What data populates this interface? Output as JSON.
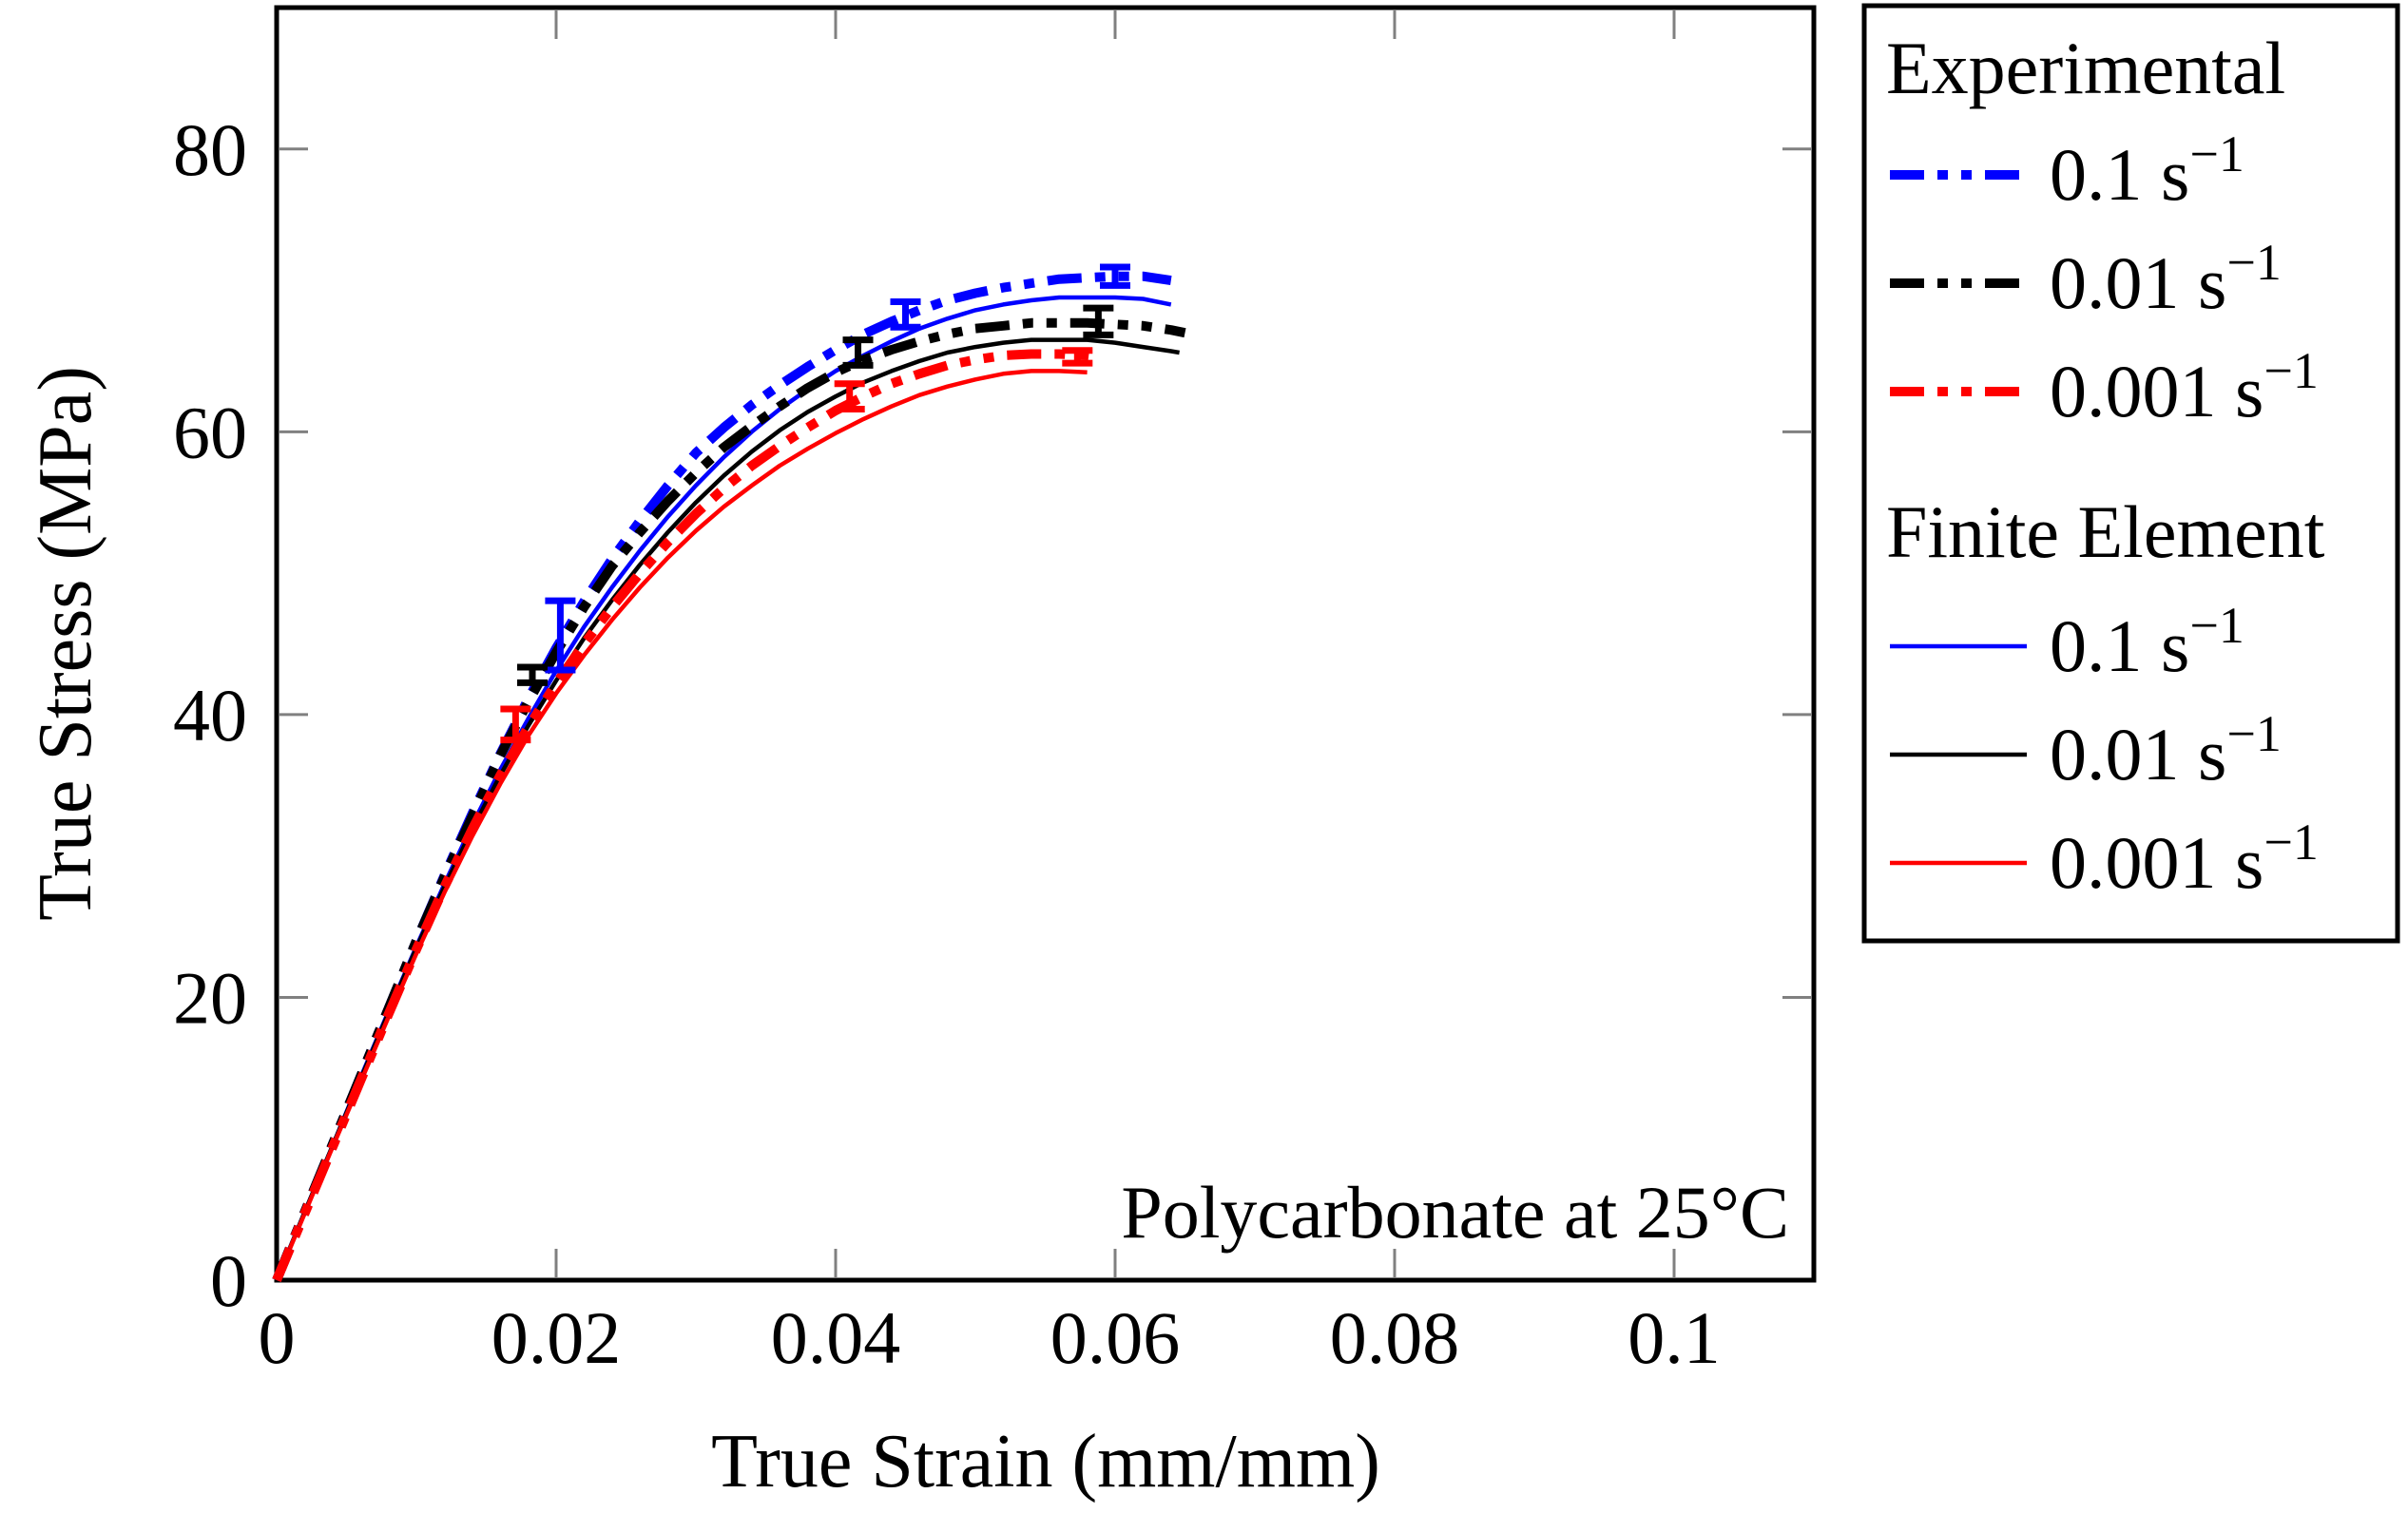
{
  "axes": {
    "xlabel": "True Strain (mm/mm)",
    "ylabel": "True Stress (MPa)",
    "annotation": "Polycarbonate at 25°C"
  },
  "legend": {
    "sections": [
      {
        "title": "Experimental",
        "items": [
          {
            "label": "0.1 s",
            "sup": "−1",
            "color": "#0000ff",
            "line_style": "dash-dot-dot"
          },
          {
            "label": "0.01 s",
            "sup": "−1",
            "color": "#000000",
            "line_style": "dash-dot-dot"
          },
          {
            "label": "0.001 s",
            "sup": "−1",
            "color": "#ff0000",
            "line_style": "dash-dot-dot"
          }
        ]
      },
      {
        "title": "Finite Element",
        "items": [
          {
            "label": "0.1 s",
            "sup": "−1",
            "color": "#0000ff",
            "line_style": "solid"
          },
          {
            "label": "0.01 s",
            "sup": "−1",
            "color": "#000000",
            "line_style": "solid"
          },
          {
            "label": "0.001 s",
            "sup": "−1",
            "color": "#ff0000",
            "line_style": "solid"
          }
        ]
      }
    ]
  },
  "chart_data": {
    "type": "line",
    "title": "Polycarbonate at 25°C",
    "xlabel": "True Strain (mm/mm)",
    "ylabel": "True Stress (MPa)",
    "xlim": [
      0,
      0.11
    ],
    "ylim": [
      0,
      90
    ],
    "grid": false,
    "legend_position": "outside-right",
    "xticks": [
      0,
      0.02,
      0.04,
      0.06,
      0.08,
      0.1
    ],
    "xtick_labels": [
      "0",
      "0.02",
      "0.04",
      "0.06",
      "0.08",
      "0.1"
    ],
    "yticks": [
      0,
      20,
      40,
      60,
      80
    ],
    "ytick_labels": [
      "0",
      "20",
      "40",
      "60",
      "80"
    ],
    "tick_color": "#808080",
    "series": [
      {
        "id": "fe-0.1",
        "name": "Finite Element 0.1 s^-1",
        "color": "#0000ff",
        "dashed": false,
        "x": [
          0,
          0.002,
          0.004,
          0.006,
          0.008,
          0.01,
          0.012,
          0.014,
          0.016,
          0.018,
          0.02,
          0.022,
          0.024,
          0.026,
          0.028,
          0.03,
          0.032,
          0.034,
          0.036,
          0.038,
          0.04,
          0.042,
          0.044,
          0.046,
          0.048,
          0.05,
          0.052,
          0.054,
          0.056,
          0.058,
          0.06,
          0.062,
          0.064
        ],
        "y": [
          0,
          4.8,
          9.5,
          14.3,
          19.0,
          23.6,
          28.0,
          32.2,
          36.1,
          39.7,
          43.1,
          46.2,
          49.0,
          51.6,
          54.0,
          56.2,
          58.2,
          60.0,
          61.6,
          63.0,
          64.3,
          65.4,
          66.4,
          67.3,
          68.0,
          68.6,
          69.0,
          69.3,
          69.5,
          69.5,
          69.5,
          69.4,
          69.0
        ],
        "error_bars": []
      },
      {
        "id": "fe-0.01",
        "name": "Finite Element 0.01 s^-1",
        "color": "#000000",
        "dashed": false,
        "x": [
          0,
          0.002,
          0.004,
          0.006,
          0.008,
          0.01,
          0.012,
          0.014,
          0.016,
          0.018,
          0.02,
          0.022,
          0.024,
          0.026,
          0.028,
          0.03,
          0.032,
          0.034,
          0.036,
          0.038,
          0.04,
          0.042,
          0.044,
          0.046,
          0.048,
          0.05,
          0.052,
          0.054,
          0.056,
          0.058,
          0.06,
          0.062,
          0.064,
          0.0646
        ],
        "y": [
          0,
          4.8,
          9.5,
          14.2,
          18.9,
          23.5,
          27.8,
          31.9,
          35.7,
          39.2,
          42.4,
          45.4,
          48.1,
          50.6,
          52.9,
          55.0,
          56.9,
          58.6,
          60.1,
          61.4,
          62.5,
          63.5,
          64.3,
          65.0,
          65.6,
          66.0,
          66.3,
          66.5,
          66.5,
          66.5,
          66.3,
          66.0,
          65.7,
          65.6
        ],
        "error_bars": []
      },
      {
        "id": "fe-0.001",
        "name": "Finite Element 0.001 s^-1",
        "color": "#ff0000",
        "dashed": false,
        "x": [
          0,
          0.002,
          0.004,
          0.006,
          0.008,
          0.01,
          0.012,
          0.014,
          0.016,
          0.018,
          0.02,
          0.022,
          0.024,
          0.026,
          0.028,
          0.03,
          0.032,
          0.034,
          0.036,
          0.038,
          0.04,
          0.042,
          0.044,
          0.046,
          0.048,
          0.05,
          0.052,
          0.054,
          0.056,
          0.058
        ],
        "y": [
          0,
          4.7,
          9.4,
          14.0,
          18.6,
          23.1,
          27.4,
          31.4,
          35.1,
          38.5,
          41.5,
          44.2,
          46.7,
          49.0,
          51.1,
          53.0,
          54.7,
          56.2,
          57.6,
          58.8,
          59.9,
          60.9,
          61.8,
          62.6,
          63.2,
          63.7,
          64.1,
          64.3,
          64.3,
          64.2
        ],
        "error_bars": []
      },
      {
        "id": "exp-0.1",
        "name": "Experimental 0.1 s^-1",
        "color": "#0000ff",
        "dashed": true,
        "x": [
          0,
          0.002,
          0.004,
          0.006,
          0.008,
          0.01,
          0.012,
          0.014,
          0.016,
          0.018,
          0.02,
          0.022,
          0.024,
          0.026,
          0.028,
          0.03,
          0.032,
          0.034,
          0.036,
          0.038,
          0.04,
          0.042,
          0.044,
          0.046,
          0.048,
          0.05,
          0.052,
          0.054,
          0.056,
          0.058,
          0.06,
          0.062,
          0.064
        ],
        "y": [
          0,
          4.8,
          9.6,
          14.4,
          19.2,
          24.0,
          28.6,
          33.0,
          37.2,
          41.1,
          44.7,
          48.0,
          51.0,
          53.7,
          56.2,
          58.5,
          60.3,
          61.9,
          63.3,
          64.6,
          65.8,
          66.9,
          67.8,
          68.6,
          69.3,
          69.8,
          70.2,
          70.5,
          70.8,
          70.9,
          71.0,
          71.0,
          70.7
        ],
        "error_bars": [
          {
            "x": 0.0203,
            "y": 45.6,
            "err": 2.45
          },
          {
            "x": 0.045,
            "y": 68.3,
            "err": 0.9
          },
          {
            "x": 0.06,
            "y": 71.0,
            "err": 0.65
          }
        ]
      },
      {
        "id": "exp-0.01",
        "name": "Experimental 0.01 s^-1",
        "color": "#000000",
        "dashed": true,
        "x": [
          0,
          0.002,
          0.004,
          0.006,
          0.008,
          0.01,
          0.012,
          0.014,
          0.016,
          0.018,
          0.02,
          0.022,
          0.024,
          0.026,
          0.028,
          0.03,
          0.032,
          0.034,
          0.036,
          0.038,
          0.04,
          0.042,
          0.044,
          0.046,
          0.048,
          0.05,
          0.052,
          0.054,
          0.056,
          0.058,
          0.06,
          0.062,
          0.064,
          0.065
        ],
        "y": [
          0,
          4.8,
          9.6,
          14.4,
          19.2,
          24.0,
          28.5,
          32.8,
          37.1,
          40.9,
          44.4,
          47.6,
          50.5,
          52.9,
          55.1,
          57.1,
          58.9,
          60.4,
          61.8,
          63.1,
          64.2,
          65.1,
          65.8,
          66.4,
          66.9,
          67.3,
          67.5,
          67.7,
          67.7,
          67.7,
          67.6,
          67.5,
          67.2,
          67.0
        ],
        "error_bars": [
          {
            "x": 0.0183,
            "y": 42.8,
            "err": 0.55
          },
          {
            "x": 0.0416,
            "y": 65.6,
            "err": 0.9
          },
          {
            "x": 0.0588,
            "y": 67.8,
            "err": 0.95
          }
        ]
      },
      {
        "id": "exp-0.001",
        "name": "Experimental 0.001 s^-1",
        "color": "#ff0000",
        "dashed": true,
        "x": [
          0,
          0.002,
          0.004,
          0.006,
          0.008,
          0.01,
          0.012,
          0.014,
          0.016,
          0.018,
          0.02,
          0.022,
          0.024,
          0.026,
          0.028,
          0.03,
          0.032,
          0.034,
          0.036,
          0.038,
          0.04,
          0.042,
          0.044,
          0.046,
          0.048,
          0.05,
          0.052,
          0.054,
          0.056,
          0.058,
          0.0588
        ],
        "y": [
          0,
          4.7,
          9.4,
          14.1,
          18.8,
          23.4,
          27.8,
          31.9,
          35.7,
          39.1,
          42.2,
          45.0,
          47.6,
          50.0,
          52.2,
          54.2,
          56.0,
          57.6,
          59.0,
          60.3,
          61.5,
          62.5,
          63.4,
          64.1,
          64.7,
          65.1,
          65.4,
          65.5,
          65.5,
          65.4,
          65.3
        ],
        "error_bars": [
          {
            "x": 0.0171,
            "y": 39.3,
            "err": 1.1
          },
          {
            "x": 0.041,
            "y": 62.5,
            "err": 0.9
          },
          {
            "x": 0.0573,
            "y": 65.3,
            "err": 0.45
          }
        ]
      }
    ]
  }
}
